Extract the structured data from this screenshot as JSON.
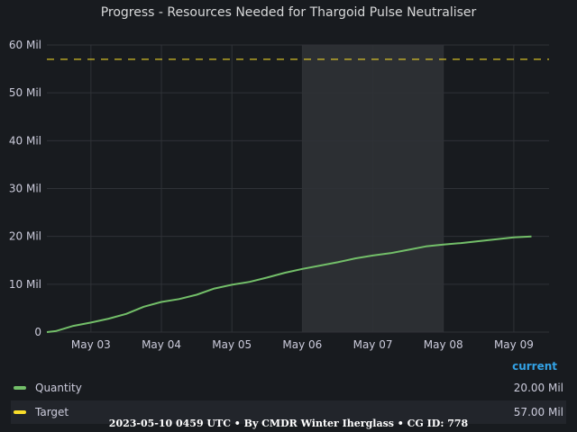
{
  "title": "Progress - Resources Needed for Thargoid Pulse Neutraliser",
  "chart_data": {
    "type": "line",
    "x_ticks": [
      "May 03",
      "May 04",
      "May 05",
      "May 06",
      "May 07",
      "May 08",
      "May 09"
    ],
    "y_ticks": [
      "0",
      "10 Mil",
      "20 Mil",
      "30 Mil",
      "40 Mil",
      "50 Mil",
      "60 Mil"
    ],
    "ylim": [
      0,
      60000000
    ],
    "xlim": [
      "2023-05-02T09:00",
      "2023-05-09T12:00"
    ],
    "grid": true,
    "highlight_range": [
      "2023-05-06T00:00",
      "2023-05-08T00:00"
    ],
    "series": [
      {
        "name": "Quantity",
        "color": "#73bf69",
        "style": "solid",
        "x": [
          "2023-05-02T09:00",
          "2023-05-02T12:00",
          "2023-05-02T18:00",
          "2023-05-03T00:00",
          "2023-05-03T06:00",
          "2023-05-03T12:00",
          "2023-05-03T18:00",
          "2023-05-04T00:00",
          "2023-05-04T06:00",
          "2023-05-04T12:00",
          "2023-05-04T18:00",
          "2023-05-05T00:00",
          "2023-05-05T06:00",
          "2023-05-05T12:00",
          "2023-05-05T18:00",
          "2023-05-06T00:00",
          "2023-05-06T06:00",
          "2023-05-06T12:00",
          "2023-05-06T18:00",
          "2023-05-07T00:00",
          "2023-05-07T06:00",
          "2023-05-07T12:00",
          "2023-05-07T18:00",
          "2023-05-08T00:00",
          "2023-05-08T06:00",
          "2023-05-08T12:00",
          "2023-05-08T18:00",
          "2023-05-09T00:00",
          "2023-05-09T06:00"
        ],
        "values": [
          0,
          200000,
          1300000,
          2000000,
          2800000,
          3800000,
          5300000,
          6300000,
          6900000,
          7800000,
          9100000,
          9900000,
          10500000,
          11400000,
          12400000,
          13200000,
          13900000,
          14600000,
          15400000,
          16000000,
          16500000,
          17200000,
          17900000,
          18300000,
          18600000,
          19000000,
          19400000,
          19800000,
          20000000
        ]
      },
      {
        "name": "Target",
        "color": "#fade2a",
        "style": "dashed",
        "x": [
          "2023-05-02T09:00",
          "2023-05-09T12:00"
        ],
        "values": [
          57000000,
          57000000
        ]
      }
    ]
  },
  "legend": {
    "header": "current",
    "items": [
      {
        "name": "Quantity",
        "value": "20.00 Mil",
        "color": "#73bf69"
      },
      {
        "name": "Target",
        "value": "57.00 Mil",
        "color": "#fade2a"
      }
    ]
  },
  "footer": "2023-05-10 0459 UTC • By CMDR Winter Iherglass • CG ID: 778"
}
